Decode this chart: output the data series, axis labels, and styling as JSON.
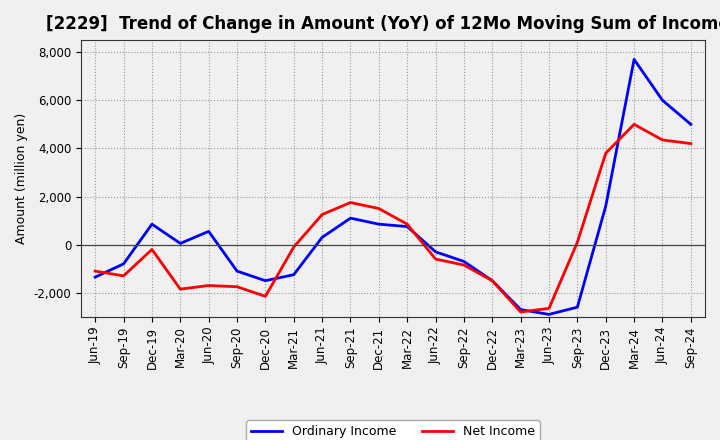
{
  "title": "[2229]  Trend of Change in Amount (YoY) of 12Mo Moving Sum of Incomes",
  "ylabel": "Amount (million yen)",
  "xlabels": [
    "Jun-19",
    "Sep-19",
    "Dec-19",
    "Mar-20",
    "Jun-20",
    "Sep-20",
    "Dec-20",
    "Mar-21",
    "Jun-21",
    "Sep-21",
    "Dec-21",
    "Mar-22",
    "Jun-22",
    "Sep-22",
    "Dec-22",
    "Mar-23",
    "Jun-23",
    "Sep-23",
    "Dec-23",
    "Mar-24",
    "Jun-24",
    "Sep-24"
  ],
  "ordinary_income": [
    -1350,
    -800,
    850,
    50,
    550,
    -1100,
    -1500,
    -1250,
    300,
    1100,
    850,
    750,
    -300,
    -700,
    -1500,
    -2700,
    -2900,
    -2600,
    1600,
    7700,
    6000,
    5000
  ],
  "net_income": [
    -1100,
    -1300,
    -200,
    -1850,
    -1700,
    -1750,
    -2150,
    -100,
    1250,
    1750,
    1500,
    850,
    -600,
    -850,
    -1500,
    -2800,
    -2650,
    100,
    3800,
    5000,
    4350,
    4200
  ],
  "ordinary_color": "#0000ff",
  "net_color": "#ff0000",
  "ylim": [
    -3000,
    8500
  ],
  "yticks": [
    -2000,
    0,
    2000,
    4000,
    6000,
    8000
  ],
  "background_color": "#f0f0f0",
  "plot_background": "#f0f0f0",
  "grid_color": "#999999",
  "legend_labels": [
    "Ordinary Income",
    "Net Income"
  ],
  "line_width": 2.0,
  "title_fontsize": 12,
  "tick_fontsize": 8.5,
  "ylabel_fontsize": 9
}
